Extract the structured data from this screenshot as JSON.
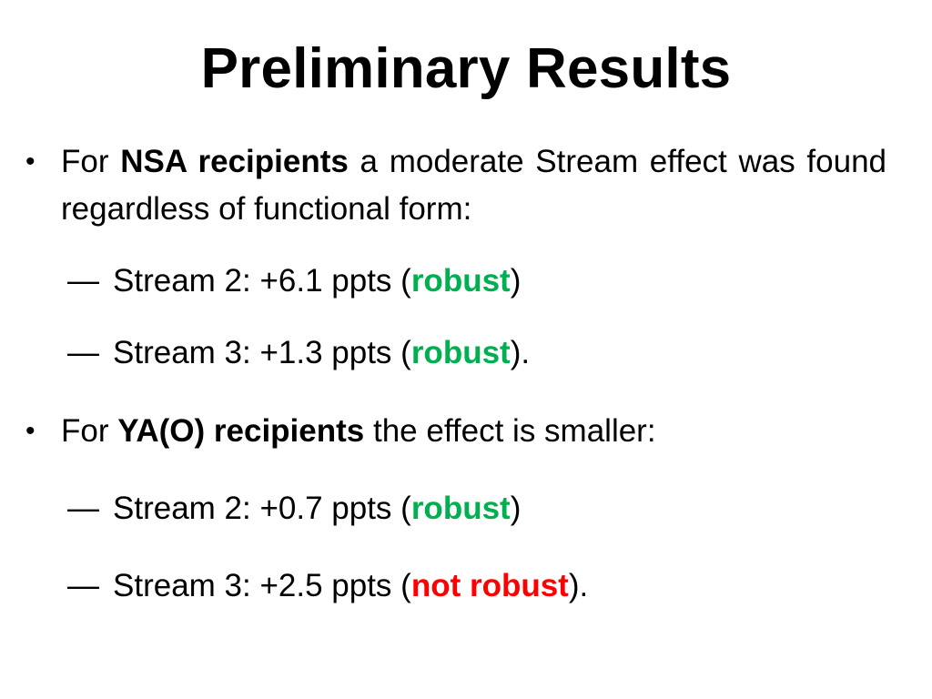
{
  "slide": {
    "title": "Preliminary Results",
    "bullet_glyph": "•",
    "dash_glyph": "—",
    "bullets": [
      {
        "prefix": "For ",
        "bold": "NSA recipients",
        "suffix": " a moderate Stream effect was found regardless of functional form:",
        "subitems": [
          {
            "text": "Stream 2: +6.1 ppts (",
            "status": "robust",
            "close": ")",
            "status_color": "#00b050"
          },
          {
            "text": "Stream 3: +1.3 ppts (",
            "status": "robust",
            "close": ").",
            "status_color": "#00b050"
          }
        ]
      },
      {
        "prefix": "For ",
        "bold": "YA(O) recipients",
        "suffix": " the effect is smaller:",
        "subitems": [
          {
            "text": "Stream 2: +0.7 ppts (",
            "status": "robust",
            "close": ")",
            "status_color": "#00b050"
          },
          {
            "text": "Stream 3: +2.5 ppts (",
            "status": "not robust",
            "close": ").",
            "status_color": "#ff0000"
          }
        ]
      }
    ]
  }
}
